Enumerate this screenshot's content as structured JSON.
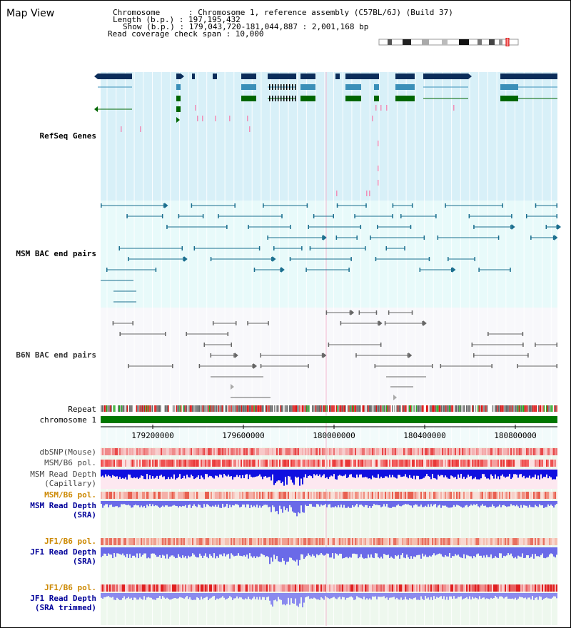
{
  "page": {
    "title": "Map View"
  },
  "info": {
    "chromosome": "Chromosome      : Chromosome 1, reference assembly (C57BL/6J) (Build 37)",
    "length": "Length (b.p.) : 197,195,432",
    "show": "Show (b.p.) : 179,043,720-181,044,887 : 2,001,168 bp",
    "coverage": "Read coverage check span : 10,000"
  },
  "tracks": {
    "refseq": "RefSeq Genes",
    "msm_bac": "MSM BAC end pairs",
    "b6n_bac": "B6N BAC end pairs",
    "repeat": "Repeat",
    "chromosome": "chromosome 1",
    "dbsnp": "dbSNP(Mouse)",
    "msm_b6_pol_1": "MSM/B6 pol.",
    "msm_depth_cap_1": "MSM Read Depth",
    "msm_depth_cap_2": "(Capillary)",
    "msm_b6_pol_2": "MSM/B6 pol.",
    "msm_depth_sra_1": "MSM Read Depth",
    "msm_depth_sra_2": "(SRA)",
    "jf1_b6_pol_1": "JF1/B6 pol.",
    "jf1_depth_sra_1": "JF1 Read Depth",
    "jf1_depth_sra_2": "(SRA)",
    "jf1_b6_pol_2": "JF1/B6 pol.",
    "jf1_depth_trim_1": "JF1 Read Depth",
    "jf1_depth_trim_2": "(SRA trimmed)"
  },
  "axis": {
    "ticks": [
      "179200000",
      "179600000",
      "180000000",
      "180400000",
      "180800000"
    ]
  },
  "colors": {
    "refseq_bg": "#d8f0f8",
    "msm_bac_bg": "#e8fafa",
    "b6n_bac_bg": "#f8f8fb",
    "lower_bg": "#eef8ee",
    "gene_dark": "#0b2d5a",
    "gene_teal": "#3a8fb8",
    "gene_green": "#006600",
    "bac_teal": "#1a6e8e",
    "bac_gray": "#666666",
    "chrom_green": "#007700",
    "depth_blue": "#1010e0",
    "depth_light": "#6a6ae8",
    "label_blue": "#000099",
    "label_teal": "#1a6e8e",
    "label_orange": "#cc8800"
  }
}
